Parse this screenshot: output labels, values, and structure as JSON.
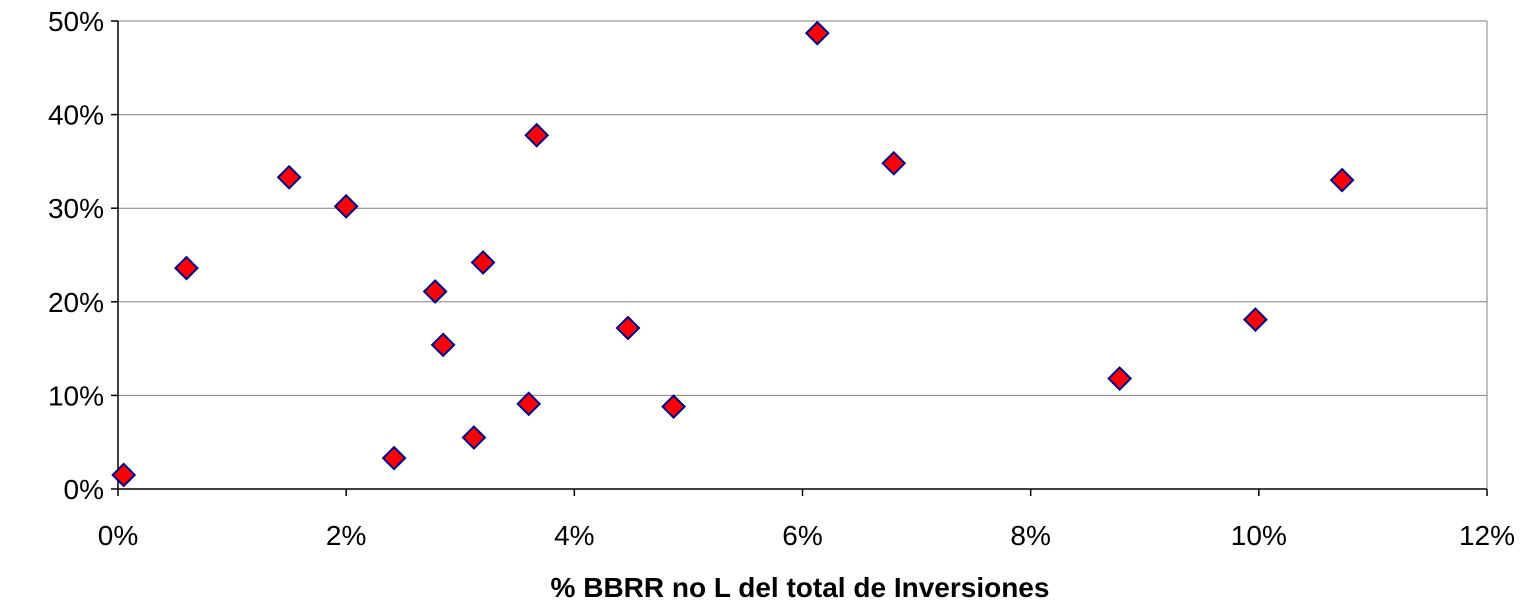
{
  "chart_data": {
    "type": "scatter",
    "title": "",
    "xlabel": "% BBRR no L del total de Inversiones",
    "ylabel": "",
    "xlim": [
      0,
      12
    ],
    "ylim": [
      0,
      50
    ],
    "x_ticks": [
      0,
      2,
      4,
      6,
      8,
      10,
      12
    ],
    "y_ticks": [
      0,
      10,
      20,
      30,
      40,
      50
    ],
    "x_tick_labels": [
      "0%",
      "2%",
      "4%",
      "6%",
      "8%",
      "10%",
      "12%"
    ],
    "y_tick_labels": [
      "0%",
      "10%",
      "20%",
      "30%",
      "40%",
      "50%"
    ],
    "grid": "horizontal",
    "legend": "none",
    "marker": "diamond",
    "marker_fill": "#ff0000",
    "marker_edge": "#000080",
    "points": [
      {
        "x": 0.05,
        "y": 1.5
      },
      {
        "x": 0.6,
        "y": 23.6
      },
      {
        "x": 1.5,
        "y": 33.3
      },
      {
        "x": 2.0,
        "y": 30.2
      },
      {
        "x": 2.42,
        "y": 3.3
      },
      {
        "x": 2.78,
        "y": 21.1
      },
      {
        "x": 2.85,
        "y": 15.4
      },
      {
        "x": 3.12,
        "y": 5.5
      },
      {
        "x": 3.2,
        "y": 24.2
      },
      {
        "x": 3.6,
        "y": 9.1
      },
      {
        "x": 3.67,
        "y": 37.8
      },
      {
        "x": 4.47,
        "y": 17.2
      },
      {
        "x": 4.87,
        "y": 8.8
      },
      {
        "x": 6.13,
        "y": 48.7
      },
      {
        "x": 6.8,
        "y": 34.8
      },
      {
        "x": 8.78,
        "y": 11.8
      },
      {
        "x": 9.97,
        "y": 18.1
      },
      {
        "x": 10.73,
        "y": 33.0
      }
    ]
  }
}
